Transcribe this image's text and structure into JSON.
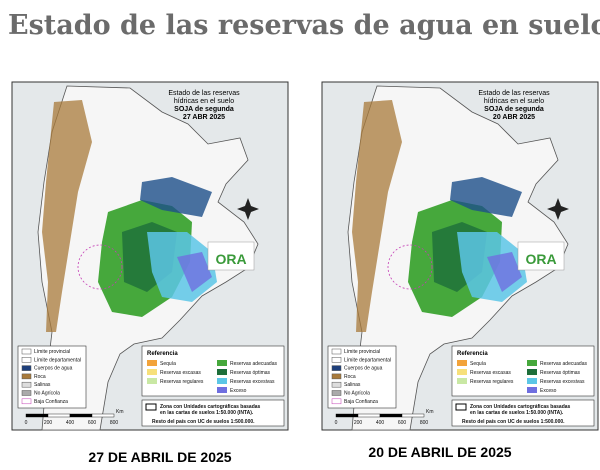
{
  "title": "Estado de las reservas de agua en suelo",
  "maps": [
    {
      "heading": [
        "Estado de las reservas",
        "hídricas en el suelo",
        "SOJA de segunda",
        "27 ABR 2025"
      ],
      "logo": "ORA",
      "boundaries": [
        "Límite provincial",
        "Límite departamental",
        "Cuerpos de agua",
        "Roca",
        "Salinas",
        "No Agrícola",
        "Baja Confianza"
      ],
      "reference_title": "Referencia",
      "reference": [
        {
          "label": "Sequía",
          "color": "#f2a33a"
        },
        {
          "label": "Reservas escasas",
          "color": "#f7e07a"
        },
        {
          "label": "Reservas regulares",
          "color": "#c9e8a4"
        },
        {
          "label": "Reservas adecuadas",
          "color": "#46a83c"
        },
        {
          "label": "Reservas óptimas",
          "color": "#1d6e3a"
        },
        {
          "label": "Reservas excesivas",
          "color": "#5cc6e6"
        },
        {
          "label": "Exceso",
          "color": "#6f6fe0"
        }
      ],
      "scale_ticks": [
        "0",
        "200",
        "400",
        "600",
        "800"
      ],
      "scale_unit": "Km",
      "zone_note": [
        "Zona con Unidades cartográficas basadas",
        "en las cartas de suelos 1:50.000 (INTA)."
      ],
      "rest_note": "Resto del país con UC de suelos 1:500.000."
    },
    {
      "heading": [
        "Estado de las reservas",
        "hídricas en el suelo",
        "SOJA de segunda",
        "20 ABR 2025"
      ],
      "logo": "ORA",
      "boundaries": [
        "Límite provincial",
        "Límite departamental",
        "Cuerpos de agua",
        "Roca",
        "Salinas",
        "No Agrícola",
        "Baja Confianza"
      ],
      "reference_title": "Referencia",
      "reference": [
        {
          "label": "Sequía",
          "color": "#f2a33a"
        },
        {
          "label": "Reservas escasas",
          "color": "#f7e07a"
        },
        {
          "label": "Reservas regulares",
          "color": "#c9e8a4"
        },
        {
          "label": "Reservas adecuadas",
          "color": "#46a83c"
        },
        {
          "label": "Reservas óptimas",
          "color": "#1d6e3a"
        },
        {
          "label": "Reservas excesivas",
          "color": "#5cc6e6"
        },
        {
          "label": "Exceso",
          "color": "#6f6fe0"
        }
      ],
      "scale_ticks": [
        "0",
        "200",
        "400",
        "600",
        "800"
      ],
      "scale_unit": "Km",
      "zone_note": [
        "Zona con Unidades cartográficas basadas",
        "en las cartas de suelos 1:50.000 (INTA)."
      ],
      "rest_note": "Resto del país con UC de suelos 1:500.000."
    }
  ],
  "captions": [
    "27 DE ABRIL DE 2025",
    "20 DE ABRIL DE 2025"
  ]
}
